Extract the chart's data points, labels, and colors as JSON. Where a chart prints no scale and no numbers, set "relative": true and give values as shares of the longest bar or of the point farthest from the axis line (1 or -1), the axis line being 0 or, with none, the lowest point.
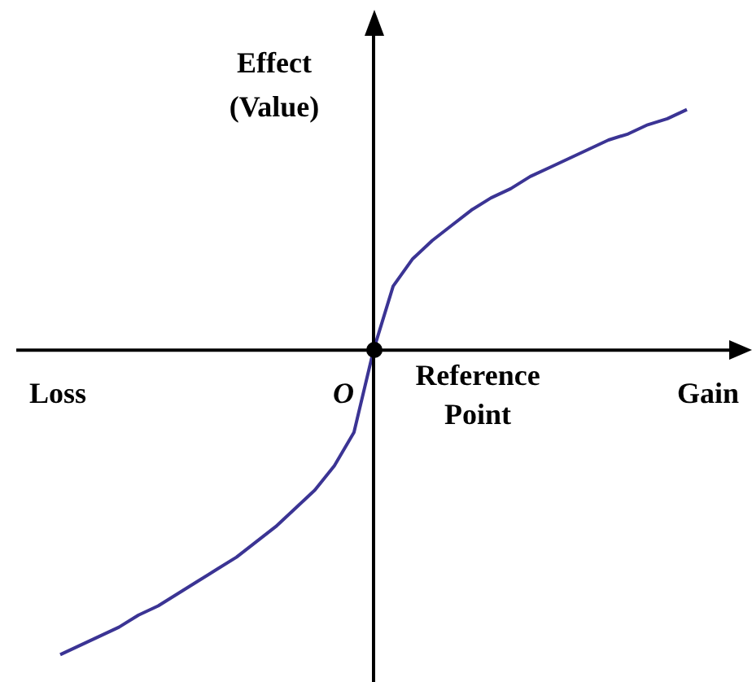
{
  "chart_data": {
    "type": "line",
    "relative": true,
    "ylabel": "Effect\n(Value)",
    "legend": false,
    "marker": "none",
    "categories": [
      null,
      null,
      null,
      null,
      null,
      null,
      null,
      null,
      null,
      null,
      null,
      null,
      null,
      null,
      null,
      null,
      null,
      null,
      null,
      null,
      null,
      null,
      null,
      null,
      null,
      null,
      null,
      null,
      null,
      null,
      null,
      null,
      null
    ],
    "series": [
      {
        "color": "#3b3494",
        "values": [
          -1,
          -0.97,
          -0.94,
          -0.91,
          -0.87,
          -0.84,
          -0.8,
          -0.76,
          -0.72,
          -0.68,
          -0.63,
          -0.58,
          -0.52,
          -0.46,
          -0.38,
          -0.27,
          0,
          0.21,
          0.3,
          0.36,
          0.41,
          0.46,
          0.5,
          0.53,
          0.57,
          0.6,
          0.63,
          0.66,
          0.69,
          0.71,
          0.74,
          0.76,
          0.79
        ]
      }
    ],
    "annotations": [
      "Loss",
      "Gain",
      "O",
      "Reference Point"
    ]
  }
}
